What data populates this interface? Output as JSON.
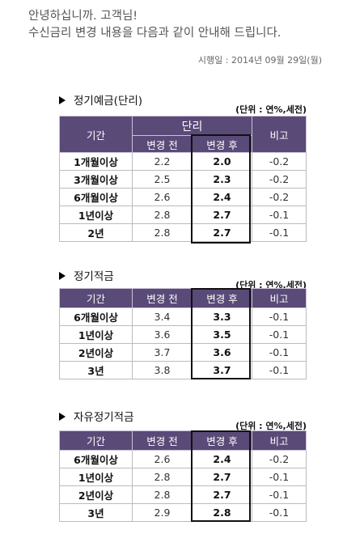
{
  "intro": {
    "line1": "안녕하십니까. 고객님!",
    "line2": "수신금리 변경 내용을 다음과 같이 안내해 드립니다.",
    "date": "시행일 : 2014년 09월 29일(월)"
  },
  "sections": [
    {
      "title": "정기예금(단리)",
      "unit": "(단위 : 연%,세전)",
      "headers": {
        "period": "기간",
        "group": "단리",
        "before": "변경 전",
        "after": "변경 후",
        "note": "비고"
      },
      "rows": [
        {
          "label": "1개월이상",
          "before": "2.2",
          "after": "2.0",
          "note": "-0.2"
        },
        {
          "label": "3개월이상",
          "before": "2.5",
          "after": "2.3",
          "note": "-0.2"
        },
        {
          "label": "6개월이상",
          "before": "2.6",
          "after": "2.4",
          "note": "-0.2"
        },
        {
          "label": "1년이상",
          "before": "2.8",
          "after": "2.7",
          "note": "-0.1"
        },
        {
          "label": "2년",
          "before": "2.8",
          "after": "2.7",
          "note": "-0.1"
        }
      ]
    },
    {
      "title": "정기적금",
      "unit": "(단위 : 연%,세전)",
      "headers": {
        "period": "기간",
        "before": "변경 전",
        "after": "변경 후",
        "note": "비고"
      },
      "rows": [
        {
          "label": "6개월이상",
          "before": "3.4",
          "after": "3.3",
          "note": "-0.1"
        },
        {
          "label": "1년이상",
          "before": "3.6",
          "after": "3.5",
          "note": "-0.1"
        },
        {
          "label": "2년이상",
          "before": "3.7",
          "after": "3.6",
          "note": "-0.1"
        },
        {
          "label": "3년",
          "before": "3.8",
          "after": "3.7",
          "note": "-0.1"
        }
      ]
    },
    {
      "title": "자유정기적금",
      "unit": "(단위 : 연%,세전)",
      "headers": {
        "period": "기간",
        "before": "변경 전",
        "after": "변경 후",
        "note": "비고"
      },
      "rows": [
        {
          "label": "6개월이상",
          "before": "2.6",
          "after": "2.4",
          "note": "-0.2"
        },
        {
          "label": "1년이상",
          "before": "2.8",
          "after": "2.7",
          "note": "-0.1"
        },
        {
          "label": "2년이상",
          "before": "2.8",
          "after": "2.7",
          "note": "-0.1"
        },
        {
          "label": "3년",
          "before": "2.9",
          "after": "2.8",
          "note": "-0.1"
        }
      ]
    }
  ]
}
